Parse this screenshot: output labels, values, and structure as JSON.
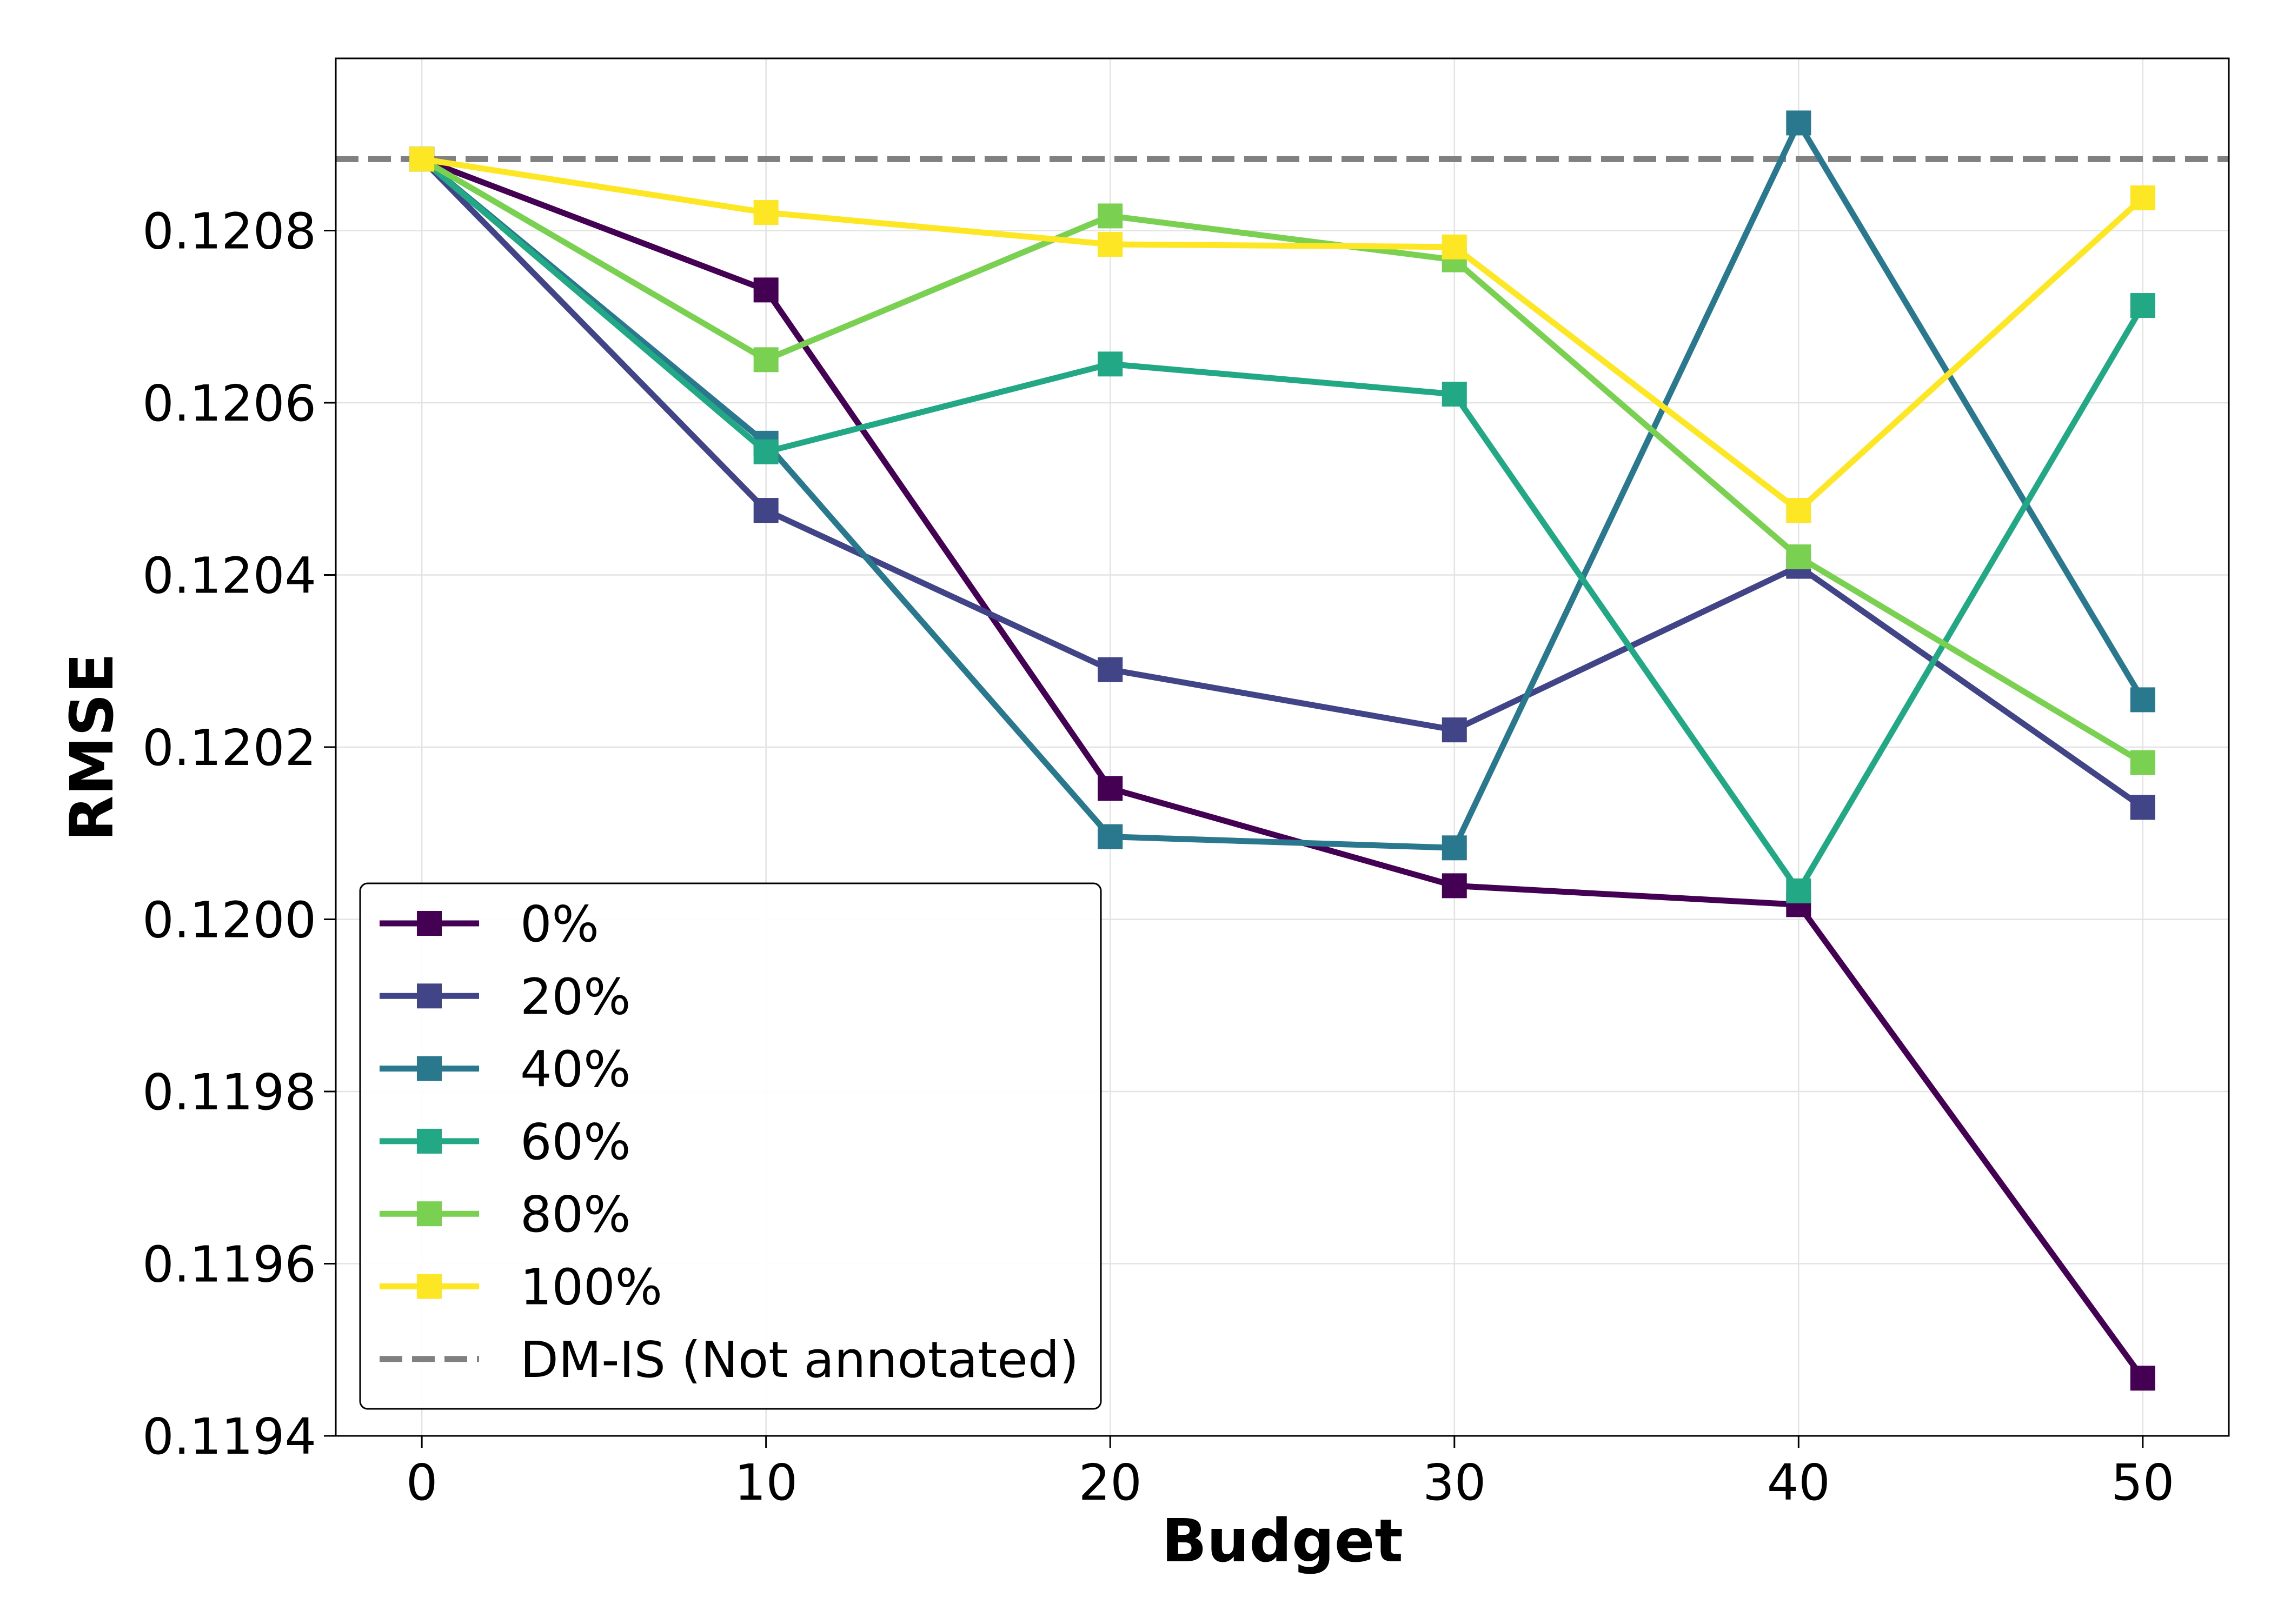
{
  "chart_data": {
    "type": "line",
    "title": "",
    "xlabel": "Budget",
    "ylabel": "RMSE",
    "x": [
      0,
      10,
      20,
      30,
      40,
      50
    ],
    "xticks": [
      0,
      10,
      20,
      30,
      40,
      50
    ],
    "xtick_labels": [
      "0",
      "10",
      "20",
      "30",
      "40",
      "50"
    ],
    "xlim": [
      -2.5,
      52.5
    ],
    "yticks": [
      0.1194,
      0.1196,
      0.1198,
      0.12,
      0.1202,
      0.1204,
      0.1206,
      0.1208
    ],
    "ytick_labels": [
      "0.1194",
      "0.1196",
      "0.1198",
      "0.1200",
      "0.1202",
      "0.1204",
      "0.1206",
      "0.1208"
    ],
    "ylim": [
      0.1194,
      0.121
    ],
    "grid": true,
    "legend_position": "lower-left",
    "series": [
      {
        "name": "0%",
        "color": "#440154",
        "marker": "square",
        "values": [
          0.120883,
          0.120731,
          0.120152,
          0.120039,
          0.120017,
          0.119467
        ]
      },
      {
        "name": "20%",
        "color": "#414487",
        "marker": "square",
        "values": [
          0.120883,
          0.120475,
          0.12029,
          0.12022,
          0.12041,
          0.12013
        ]
      },
      {
        "name": "40%",
        "color": "#2a788e",
        "marker": "square",
        "values": [
          0.120883,
          0.120553,
          0.120096,
          0.120083,
          0.120925,
          0.120255
        ]
      },
      {
        "name": "60%",
        "color": "#22a884",
        "marker": "square",
        "values": [
          0.120883,
          0.120543,
          0.120645,
          0.12061,
          0.120033,
          0.120713
        ]
      },
      {
        "name": "80%",
        "color": "#7ad151",
        "marker": "square",
        "values": [
          0.120883,
          0.12065,
          0.120817,
          0.120766,
          0.120421,
          0.120182
        ]
      },
      {
        "name": "100%",
        "color": "#fde725",
        "marker": "square",
        "values": [
          0.120883,
          0.120821,
          0.120784,
          0.120781,
          0.120475,
          0.120838
        ]
      }
    ],
    "reference_lines": [
      {
        "name": "DM-IS (Not annotated)",
        "value": 0.120883,
        "color": "#808080",
        "style": "dashed"
      }
    ]
  }
}
